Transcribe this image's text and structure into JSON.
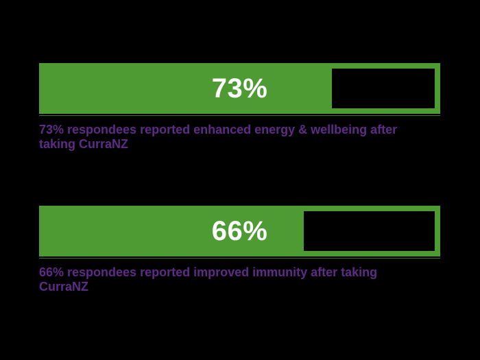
{
  "page": {
    "background": "#000000"
  },
  "colors": {
    "green": "#4e9b33",
    "green_line": "#3c7a26",
    "purple": "#5e2c87",
    "white": "#ffffff",
    "black": "#000000"
  },
  "bars": [
    {
      "id": "energy",
      "percent": 73,
      "label": "73%",
      "caption": "73% respondees reported enhanced energy & wellbeing after\ntaking CurraNZ"
    },
    {
      "id": "immunity",
      "percent": 66,
      "label": "66%",
      "caption": "66% respondees reported improved immunity after taking\nCurraNZ"
    }
  ],
  "chart_data": {
    "type": "bar",
    "orientation": "horizontal",
    "categories": [
      "Enhanced energy & wellbeing after taking CurraNZ",
      "Improved immunity after taking CurraNZ"
    ],
    "values": [
      73,
      66
    ],
    "unit": "%",
    "value_labels": [
      "73%",
      "66%"
    ],
    "xlim": [
      0,
      100
    ],
    "title": "",
    "xlabel": "",
    "ylabel": "",
    "grid": false,
    "legend": false,
    "bar_color": "#4e9b33",
    "label_color": "#ffffff",
    "caption_color": "#5e2c87",
    "annotations": [
      "73% respondees reported enhanced energy & wellbeing after taking CurraNZ",
      "66% respondees reported improved immunity after taking CurraNZ"
    ]
  }
}
